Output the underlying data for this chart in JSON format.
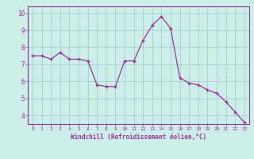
{
  "x": [
    0,
    1,
    2,
    3,
    4,
    5,
    6,
    7,
    8,
    9,
    10,
    11,
    12,
    13,
    14,
    15,
    16,
    17,
    18,
    19,
    20,
    21,
    22,
    23
  ],
  "y": [
    7.5,
    7.5,
    7.3,
    7.7,
    7.3,
    7.3,
    7.2,
    5.8,
    5.7,
    5.7,
    7.2,
    7.2,
    8.4,
    9.3,
    9.8,
    9.1,
    6.2,
    5.9,
    5.8,
    5.5,
    5.3,
    4.8,
    4.2,
    3.6
  ],
  "line_color": "#993399",
  "marker_color": "#993399",
  "bg_color": "#cceee8",
  "grid_color": "#aacccc",
  "axis_label_color": "#993399",
  "tick_color": "#993399",
  "xlabel": "Windchill (Refroidissement éolien,°C)",
  "xlim": [
    -0.5,
    23.5
  ],
  "ylim": [
    3.5,
    10.4
  ],
  "yticks": [
    4,
    5,
    6,
    7,
    8,
    9,
    10
  ],
  "xticks": [
    0,
    1,
    2,
    3,
    4,
    5,
    6,
    7,
    8,
    9,
    10,
    11,
    12,
    13,
    14,
    15,
    16,
    17,
    18,
    19,
    20,
    21,
    22,
    23
  ]
}
